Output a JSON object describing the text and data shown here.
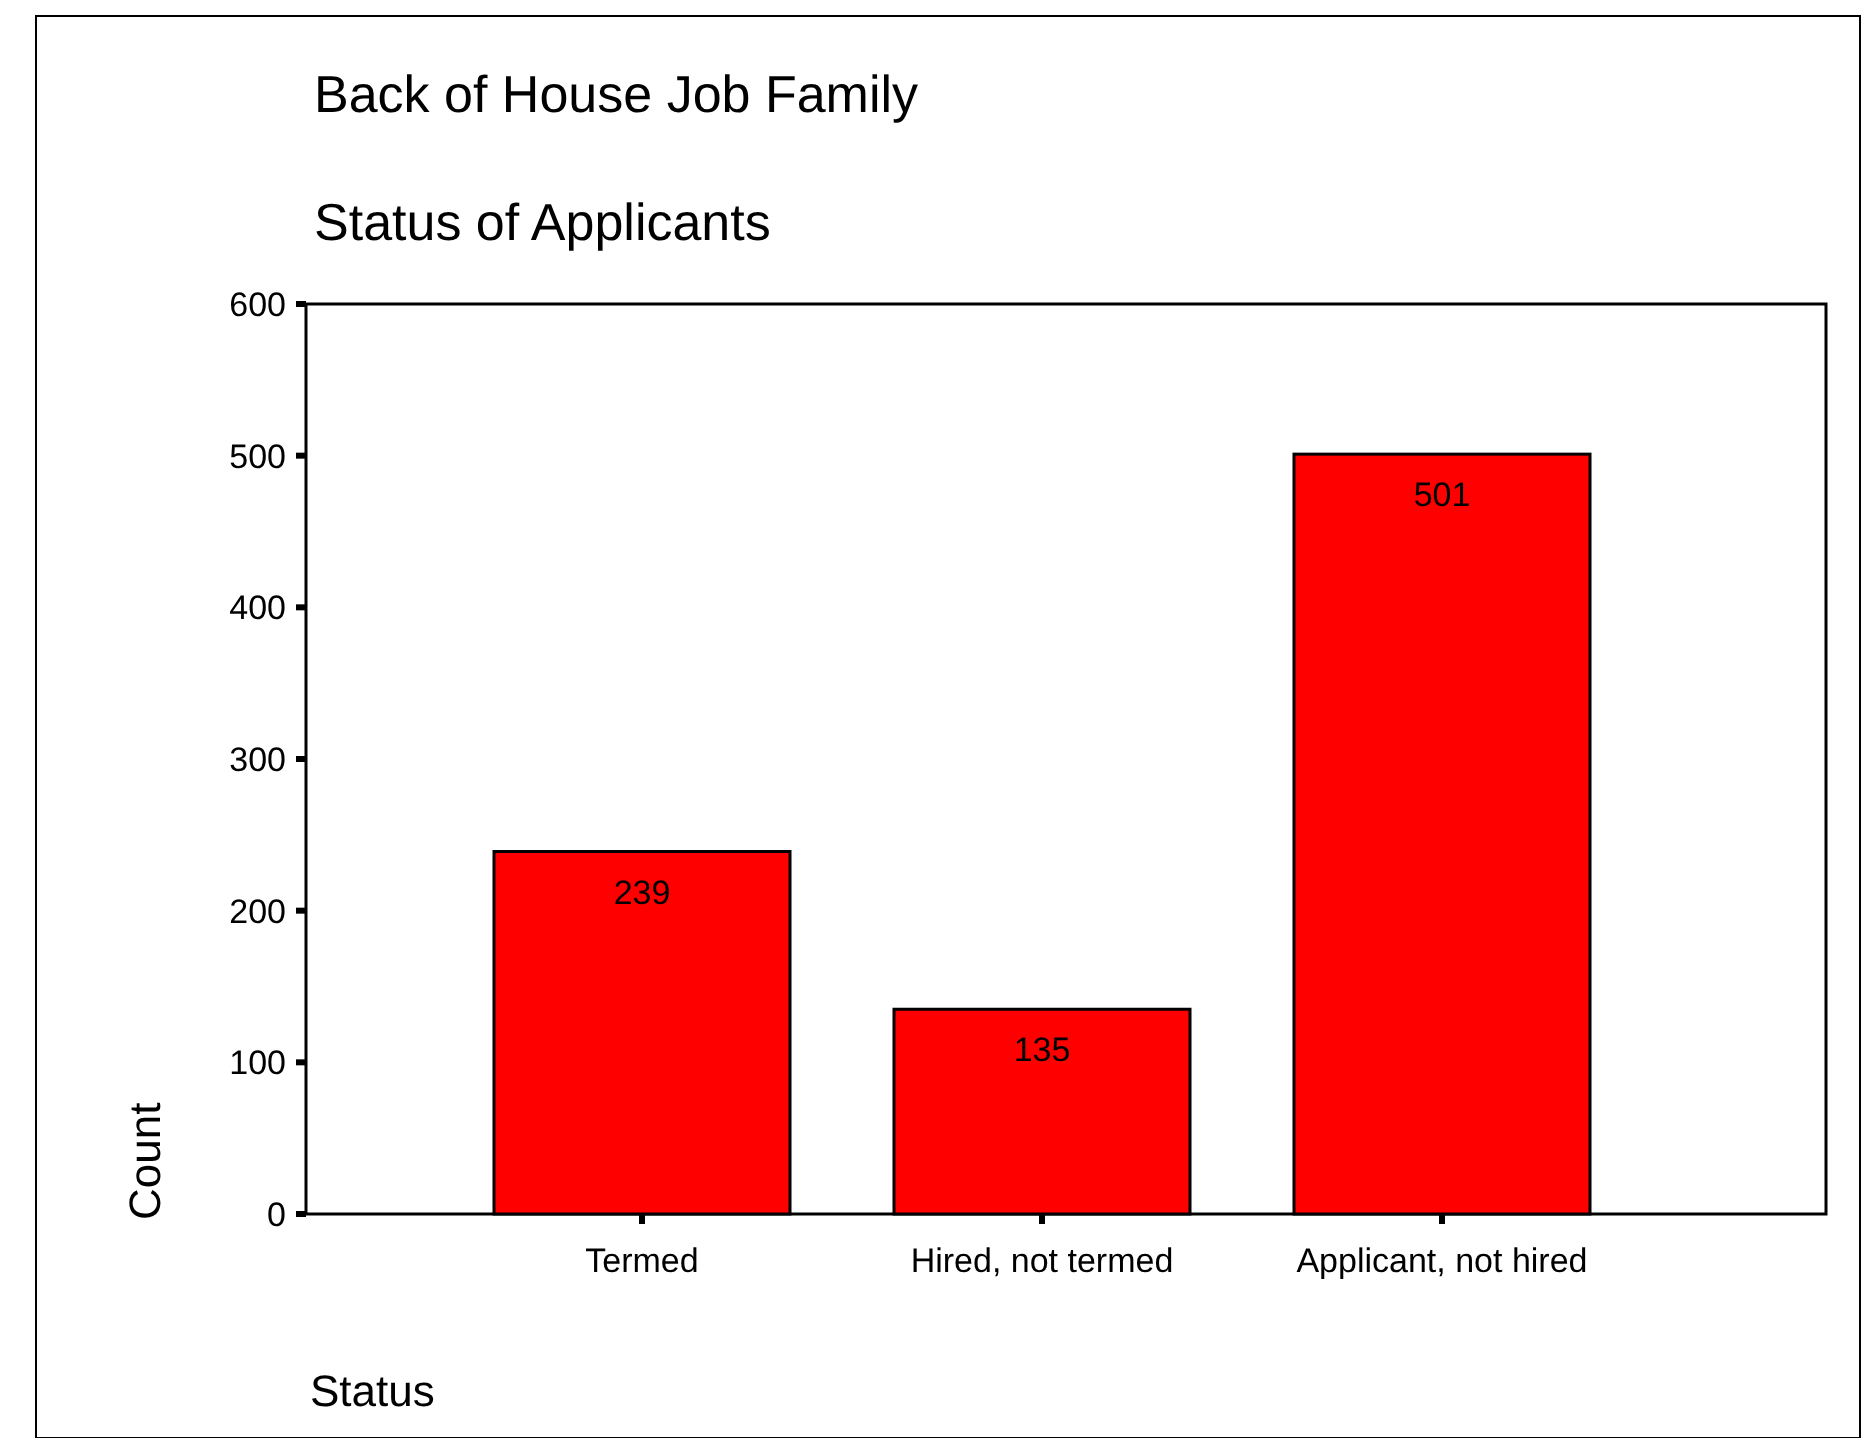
{
  "chart_data": {
    "type": "bar",
    "title": "Back of House Job Family",
    "subtitle": "Status of Applicants",
    "xlabel": "Status",
    "ylabel": "Count",
    "categories": [
      "Termed",
      "Hired, not termed",
      "Applicant, not hired"
    ],
    "values": [
      239,
      135,
      501
    ],
    "color": "#ff0000",
    "ylim": [
      0,
      600
    ],
    "yticks": [
      0,
      100,
      200,
      300,
      400,
      500,
      600
    ],
    "grid": false,
    "data_labels": true
  }
}
